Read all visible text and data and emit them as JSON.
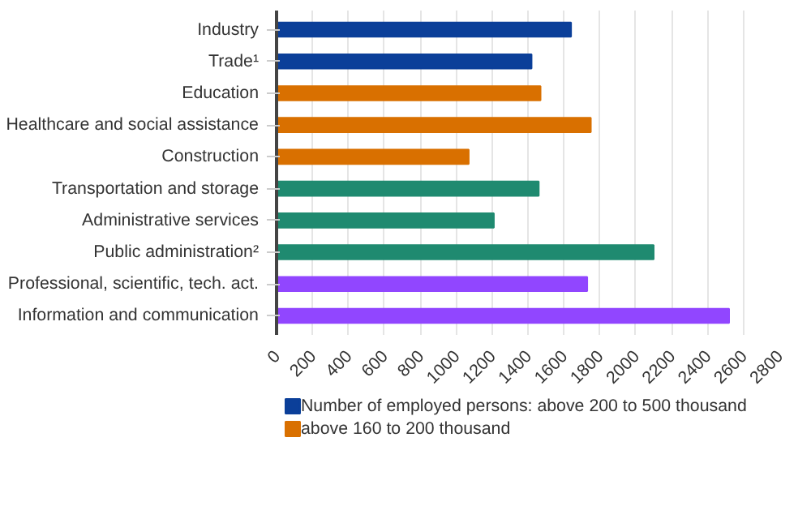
{
  "chart_data": {
    "type": "bar",
    "orientation": "horizontal",
    "stacked": true,
    "categories": [
      "Industry",
      "Trade¹",
      "Education",
      "Healthcare and social assistance",
      "Construction",
      "Transportation and storage",
      "Administrative services",
      "Public administration²",
      "Professional, scientific, tech. act.",
      "Information and communication"
    ],
    "series": [
      {
        "name": "Number of employed persons: above 200 to 500 thousand",
        "color": "#0b3f99",
        "values": [
          1640,
          1420,
          null,
          null,
          null,
          null,
          null,
          null,
          null,
          null
        ]
      },
      {
        "name": "above 160 to 200 thousand",
        "color": "#d97000",
        "values": [
          null,
          null,
          1470,
          1750,
          1070,
          null,
          null,
          null,
          null,
          null
        ]
      },
      {
        "color": "#1f8a70",
        "values": [
          null,
          null,
          null,
          null,
          null,
          1460,
          1210,
          2100,
          null,
          null
        ]
      },
      {
        "color": "#9146ff",
        "values": [
          null,
          null,
          null,
          null,
          null,
          null,
          null,
          null,
          1730,
          2520
        ]
      }
    ],
    "xlim": [
      0,
      2800
    ],
    "xticks": [
      0,
      200,
      400,
      600,
      800,
      1000,
      1200,
      1400,
      1600,
      1800,
      2000,
      2200,
      2400,
      2600,
      2800
    ],
    "grid": "x",
    "legend": "bottom"
  }
}
